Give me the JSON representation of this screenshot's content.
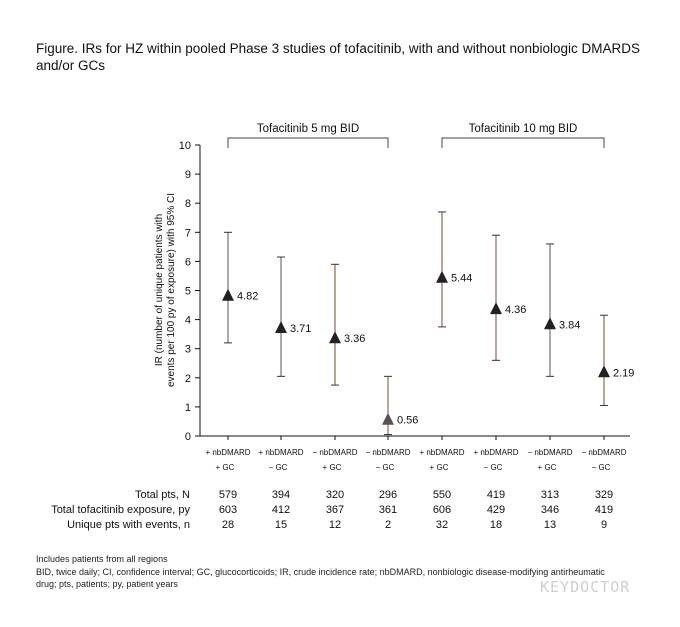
{
  "figure": {
    "title": "Figure. IRs for HZ within pooled Phase 3 studies of tofacitinib, with and without nonbiologic DMARDS and/or GCs",
    "footnote_1": "Includes patients from all regions",
    "footnote_2": "BID, twice daily; CI, confidence interval; GC, glucocorticoids; IR, crude incidence rate; nbDMARD, nonbiologic disease-modifying antirheumatic",
    "footnote_3": "drug; pts, patients; py, patient years",
    "watermark": "KEYDOCTOR"
  },
  "chart_data": {
    "type": "scatter",
    "ylabel_line1": "IR (number of unique patients with",
    "ylabel_line2": "events per 100 py of exposure) with 95% CI",
    "ylim": [
      0,
      10
    ],
    "yticks": [
      "0",
      "1",
      "2",
      "3",
      "4",
      "5",
      "6",
      "7",
      "8",
      "9",
      "10"
    ],
    "groups": [
      {
        "label": "Tofacitinib 5 mg BID",
        "from": 0,
        "to": 3
      },
      {
        "label": "Tofacitinib 10 mg BID",
        "from": 4,
        "to": 7
      }
    ],
    "categories": [
      {
        "line1": "+ nbDMARD",
        "line2": "+ GC"
      },
      {
        "line1": "+ nbDMARD",
        "line2": "− GC"
      },
      {
        "line1": "− nbDMARD",
        "line2": "+ GC"
      },
      {
        "line1": "− nbDMARD",
        "line2": "− GC"
      },
      {
        "line1": "+ nbDMARD",
        "line2": "+ GC"
      },
      {
        "line1": "+ nbDMARD",
        "line2": "− GC"
      },
      {
        "line1": "− nbDMARD",
        "line2": "+ GC"
      },
      {
        "line1": "− nbDMARD",
        "line2": "− GC"
      }
    ],
    "points": [
      {
        "value": 4.82,
        "label": "4.82",
        "ci_low": 3.2,
        "ci_high": 7.0
      },
      {
        "value": 3.71,
        "label": "3.71",
        "ci_low": 2.05,
        "ci_high": 6.15
      },
      {
        "value": 3.36,
        "label": "3.36",
        "ci_low": 1.75,
        "ci_high": 5.9
      },
      {
        "value": 0.56,
        "label": "0.56",
        "ci_low": 0.05,
        "ci_high": 2.05
      },
      {
        "value": 5.44,
        "label": "5.44",
        "ci_low": 3.75,
        "ci_high": 7.7
      },
      {
        "value": 4.36,
        "label": "4.36",
        "ci_low": 2.6,
        "ci_high": 6.9
      },
      {
        "value": 3.84,
        "label": "3.84",
        "ci_low": 2.05,
        "ci_high": 6.6
      },
      {
        "value": 2.19,
        "label": "2.19",
        "ci_low": 1.05,
        "ci_high": 4.15
      }
    ],
    "table": [
      {
        "label": "Total pts, N",
        "values": [
          "579",
          "394",
          "320",
          "296",
          "550",
          "419",
          "313",
          "329"
        ]
      },
      {
        "label": "Total tofacitinib exposure, py",
        "values": [
          "603",
          "412",
          "367",
          "361",
          "606",
          "429",
          "346",
          "419"
        ]
      },
      {
        "label": "Unique pts with events, n",
        "values": [
          "28",
          "15",
          "12",
          "2",
          "32",
          "18",
          "13",
          "9"
        ]
      }
    ]
  }
}
